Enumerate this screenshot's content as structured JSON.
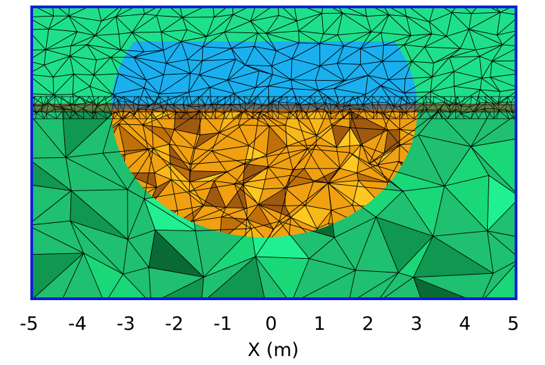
{
  "figure": {
    "xaxis": {
      "label": "X (m)",
      "ticks": [
        "-5",
        "-4",
        "-3",
        "-2",
        "-1",
        "0",
        "1",
        "2",
        "3",
        "4",
        "5"
      ],
      "range": [
        -5,
        5
      ]
    },
    "colors": {
      "frame": "#0f1fd8",
      "mesh_lines": "#000000",
      "upper_domain": "#1fe08a",
      "inclusion_top": "#1ab0f0",
      "inclusion_bottom": "#f0a010",
      "lower_domain": "#1fc070",
      "lower_domain_dark": "#0a6a35",
      "interface_band": "#8a3a10"
    }
  }
}
